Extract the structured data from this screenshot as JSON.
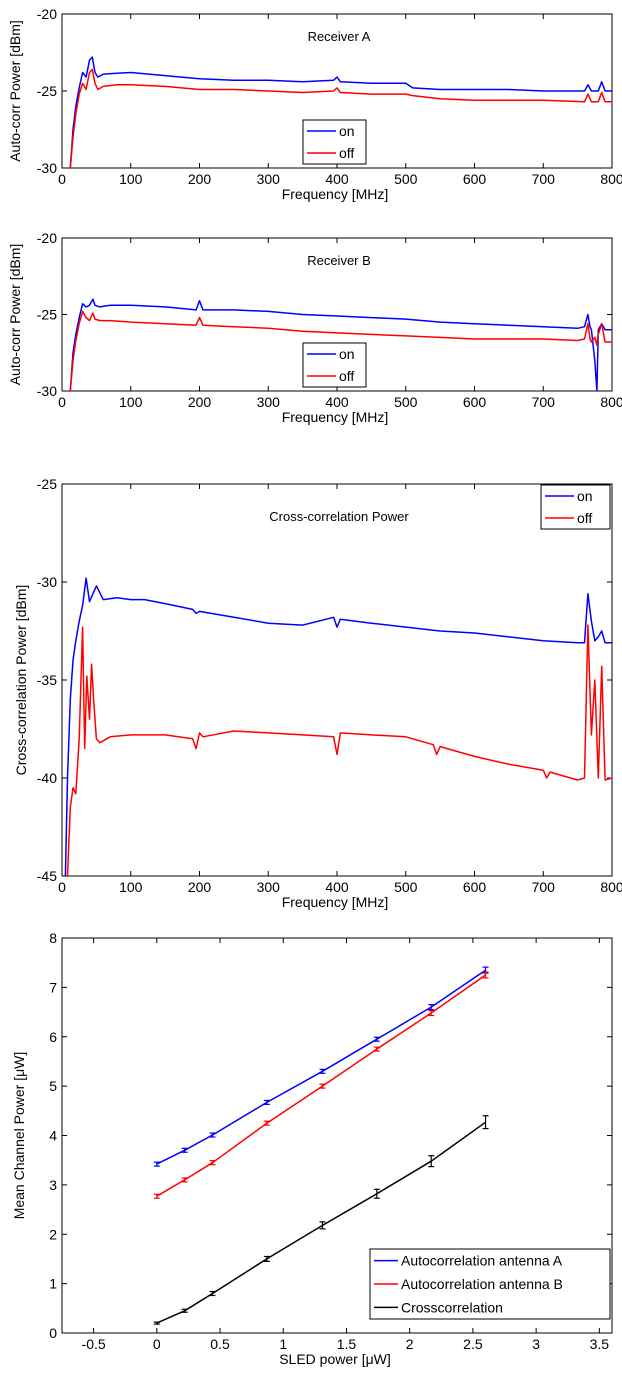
{
  "chart_data": [
    {
      "type": "line",
      "title": "Receiver A",
      "xlabel": "Frequency [MHz]",
      "ylabel": "Auto-corr Power [dBm]",
      "xlim": [
        0,
        800
      ],
      "ylim": [
        -30,
        -20
      ],
      "xticks": [
        0,
        100,
        200,
        300,
        400,
        500,
        600,
        700,
        800
      ],
      "yticks": [
        -30,
        -25,
        -20
      ],
      "grid": false,
      "legend": "center",
      "series": [
        {
          "name": "on",
          "color": "#0000ff",
          "x": [
            12,
            16,
            20,
            25,
            30,
            35,
            40,
            44,
            48,
            52,
            60,
            80,
            100,
            150,
            200,
            250,
            300,
            350,
            395,
            400,
            405,
            450,
            500,
            510,
            550,
            600,
            650,
            700,
            760,
            765,
            770,
            780,
            785,
            790,
            800
          ],
          "y": [
            -30,
            -27.5,
            -26,
            -24.8,
            -23.8,
            -24.1,
            -23,
            -22.8,
            -23.8,
            -24.1,
            -23.9,
            -23.85,
            -23.8,
            -24,
            -24.2,
            -24.3,
            -24.3,
            -24.4,
            -24.3,
            -24.1,
            -24.4,
            -24.5,
            -24.5,
            -24.8,
            -24.9,
            -24.9,
            -24.9,
            -25,
            -25,
            -24.6,
            -25,
            -25,
            -24.4,
            -25,
            -25
          ]
        },
        {
          "name": "off",
          "color": "#ff0000",
          "x": [
            12,
            16,
            20,
            25,
            30,
            35,
            40,
            44,
            48,
            52,
            60,
            80,
            100,
            150,
            200,
            250,
            300,
            350,
            395,
            400,
            405,
            450,
            500,
            510,
            550,
            600,
            650,
            700,
            760,
            765,
            770,
            780,
            785,
            790,
            800
          ],
          "y": [
            -30,
            -28,
            -26.5,
            -25.2,
            -24.5,
            -24.9,
            -23.8,
            -23.6,
            -24.5,
            -24.9,
            -24.7,
            -24.6,
            -24.6,
            -24.7,
            -24.9,
            -24.9,
            -25,
            -25.1,
            -25,
            -24.8,
            -25.1,
            -25.2,
            -25.2,
            -25.3,
            -25.5,
            -25.6,
            -25.6,
            -25.6,
            -25.7,
            -25.2,
            -25.7,
            -25.7,
            -25.1,
            -25.7,
            -25.7
          ]
        }
      ]
    },
    {
      "type": "line",
      "title": "Receiver B",
      "xlabel": "Frequency [MHz]",
      "ylabel": "Auto-corr Power [dBm]",
      "xlim": [
        0,
        800
      ],
      "ylim": [
        -30,
        -20
      ],
      "xticks": [
        0,
        100,
        200,
        300,
        400,
        500,
        600,
        700,
        800
      ],
      "yticks": [
        -30,
        -25,
        -20
      ],
      "grid": false,
      "legend": "center",
      "series": [
        {
          "name": "on",
          "color": "#0000ff",
          "x": [
            12,
            16,
            20,
            25,
            30,
            35,
            40,
            45,
            48,
            55,
            70,
            100,
            150,
            195,
            200,
            205,
            250,
            300,
            350,
            400,
            450,
            500,
            550,
            600,
            650,
            700,
            750,
            760,
            765,
            768,
            770,
            775,
            778,
            780,
            785,
            790,
            800
          ],
          "y": [
            -30,
            -27.5,
            -26.3,
            -25.2,
            -24.3,
            -24.5,
            -24.4,
            -24,
            -24.4,
            -24.5,
            -24.4,
            -24.4,
            -24.5,
            -24.7,
            -24.1,
            -24.7,
            -24.7,
            -24.8,
            -25,
            -25.1,
            -25.2,
            -25.3,
            -25.5,
            -25.6,
            -25.7,
            -25.8,
            -25.9,
            -25.8,
            -25,
            -25.8,
            -26,
            -28,
            -30,
            -26,
            -25.6,
            -26,
            -26
          ]
        },
        {
          "name": "off",
          "color": "#ff0000",
          "x": [
            12,
            16,
            20,
            25,
            30,
            35,
            40,
            45,
            48,
            55,
            70,
            100,
            150,
            195,
            200,
            205,
            250,
            300,
            350,
            400,
            450,
            500,
            550,
            600,
            650,
            700,
            750,
            760,
            765,
            768,
            770,
            775,
            778,
            780,
            785,
            790,
            800
          ],
          "y": [
            -30,
            -28,
            -26.7,
            -25.6,
            -24.8,
            -25.2,
            -25.4,
            -24.9,
            -25.3,
            -25.4,
            -25.4,
            -25.5,
            -25.6,
            -25.7,
            -25.2,
            -25.7,
            -25.8,
            -25.9,
            -26.1,
            -26.2,
            -26.3,
            -26.4,
            -26.5,
            -26.6,
            -26.6,
            -26.6,
            -26.7,
            -26.6,
            -25.6,
            -26.6,
            -26.8,
            -26.5,
            -27,
            -26.3,
            -25.6,
            -26.8,
            -26.8
          ]
        }
      ]
    },
    {
      "type": "line",
      "title": "Cross-correlation Power",
      "xlabel": "Frequency [MHz]",
      "ylabel": "Cross-correlation Power [dBm]",
      "xlim": [
        0,
        800
      ],
      "ylim": [
        -45,
        -25
      ],
      "xticks": [
        0,
        100,
        200,
        300,
        400,
        500,
        600,
        700,
        800
      ],
      "yticks": [
        -45,
        -40,
        -35,
        -30,
        -25
      ],
      "grid": false,
      "legend": "top-right",
      "series": [
        {
          "name": "on",
          "color": "#0000ff",
          "x": [
            5,
            8,
            12,
            16,
            20,
            25,
            30,
            35,
            40,
            45,
            50,
            60,
            80,
            100,
            120,
            150,
            190,
            195,
            200,
            250,
            300,
            350,
            395,
            400,
            405,
            450,
            500,
            550,
            600,
            650,
            700,
            750,
            760,
            765,
            770,
            775,
            780,
            785,
            790,
            800
          ],
          "y": [
            -45,
            -40,
            -36,
            -34,
            -33,
            -32,
            -31.2,
            -29.8,
            -31,
            -30.6,
            -30.2,
            -30.9,
            -30.8,
            -30.9,
            -30.9,
            -31.1,
            -31.4,
            -31.6,
            -31.5,
            -31.8,
            -32.1,
            -32.2,
            -31.8,
            -32.3,
            -31.9,
            -32.1,
            -32.3,
            -32.5,
            -32.6,
            -32.8,
            -33,
            -33.1,
            -33.1,
            -30.6,
            -32,
            -33,
            -32.8,
            -32.5,
            -33.1,
            -33.1
          ]
        },
        {
          "name": "off",
          "color": "#ff0000",
          "x": [
            8,
            12,
            16,
            20,
            25,
            30,
            33,
            36,
            40,
            43,
            46,
            50,
            55,
            60,
            70,
            100,
            150,
            190,
            195,
            200,
            205,
            250,
            300,
            350,
            395,
            400,
            405,
            450,
            500,
            540,
            545,
            550,
            600,
            650,
            700,
            705,
            710,
            750,
            760,
            765,
            770,
            775,
            780,
            785,
            790,
            800
          ],
          "y": [
            -45,
            -41.5,
            -40.5,
            -40.8,
            -38,
            -32.3,
            -38.5,
            -34.8,
            -37,
            -34.2,
            -36,
            -38,
            -38.2,
            -38.1,
            -37.9,
            -37.8,
            -37.8,
            -38,
            -38.5,
            -37.7,
            -37.9,
            -37.6,
            -37.7,
            -37.8,
            -37.9,
            -38.8,
            -37.7,
            -37.8,
            -37.9,
            -38.3,
            -38.8,
            -38.4,
            -38.9,
            -39.3,
            -39.6,
            -40,
            -39.7,
            -40.1,
            -40,
            -32.2,
            -37.8,
            -35,
            -40,
            -34.3,
            -40.1,
            -40
          ]
        }
      ]
    },
    {
      "type": "line",
      "title": "",
      "xlabel": "SLED power [μW]",
      "ylabel": "Mean Channel Power [μW]",
      "xlim": [
        -0.75,
        3.6
      ],
      "ylim": [
        0,
        8
      ],
      "xticks": [
        -0.5,
        0,
        0.5,
        1,
        1.5,
        2,
        2.5,
        3,
        3.5
      ],
      "yticks": [
        0,
        1,
        2,
        3,
        4,
        5,
        6,
        7,
        8
      ],
      "grid": false,
      "legend": "bottom-right",
      "series": [
        {
          "name": "Autocorrelation antenna A",
          "color": "#0000ff",
          "x": [
            0,
            0.22,
            0.44,
            0.87,
            1.31,
            1.74,
            2.17,
            2.6
          ],
          "y": [
            3.42,
            3.7,
            4.01,
            4.67,
            5.3,
            5.95,
            6.6,
            7.35
          ],
          "err": [
            0.04,
            0.04,
            0.04,
            0.04,
            0.04,
            0.04,
            0.05,
            0.06
          ]
        },
        {
          "name": "Autocorrelation antenna B",
          "color": "#ff0000",
          "x": [
            0,
            0.22,
            0.44,
            0.87,
            1.31,
            1.74,
            2.17,
            2.6
          ],
          "y": [
            2.77,
            3.1,
            3.45,
            4.25,
            5.0,
            5.75,
            6.48,
            7.25
          ],
          "err": [
            0.04,
            0.04,
            0.04,
            0.04,
            0.04,
            0.04,
            0.05,
            0.06
          ]
        },
        {
          "name": "Crosscorrelation",
          "color": "#000000",
          "x": [
            0,
            0.22,
            0.44,
            0.87,
            1.31,
            1.74,
            2.17,
            2.6
          ],
          "y": [
            0.2,
            0.45,
            0.8,
            1.5,
            2.18,
            2.82,
            3.48,
            4.27
          ],
          "err": [
            0.02,
            0.03,
            0.04,
            0.05,
            0.07,
            0.09,
            0.11,
            0.13
          ]
        }
      ]
    }
  ]
}
